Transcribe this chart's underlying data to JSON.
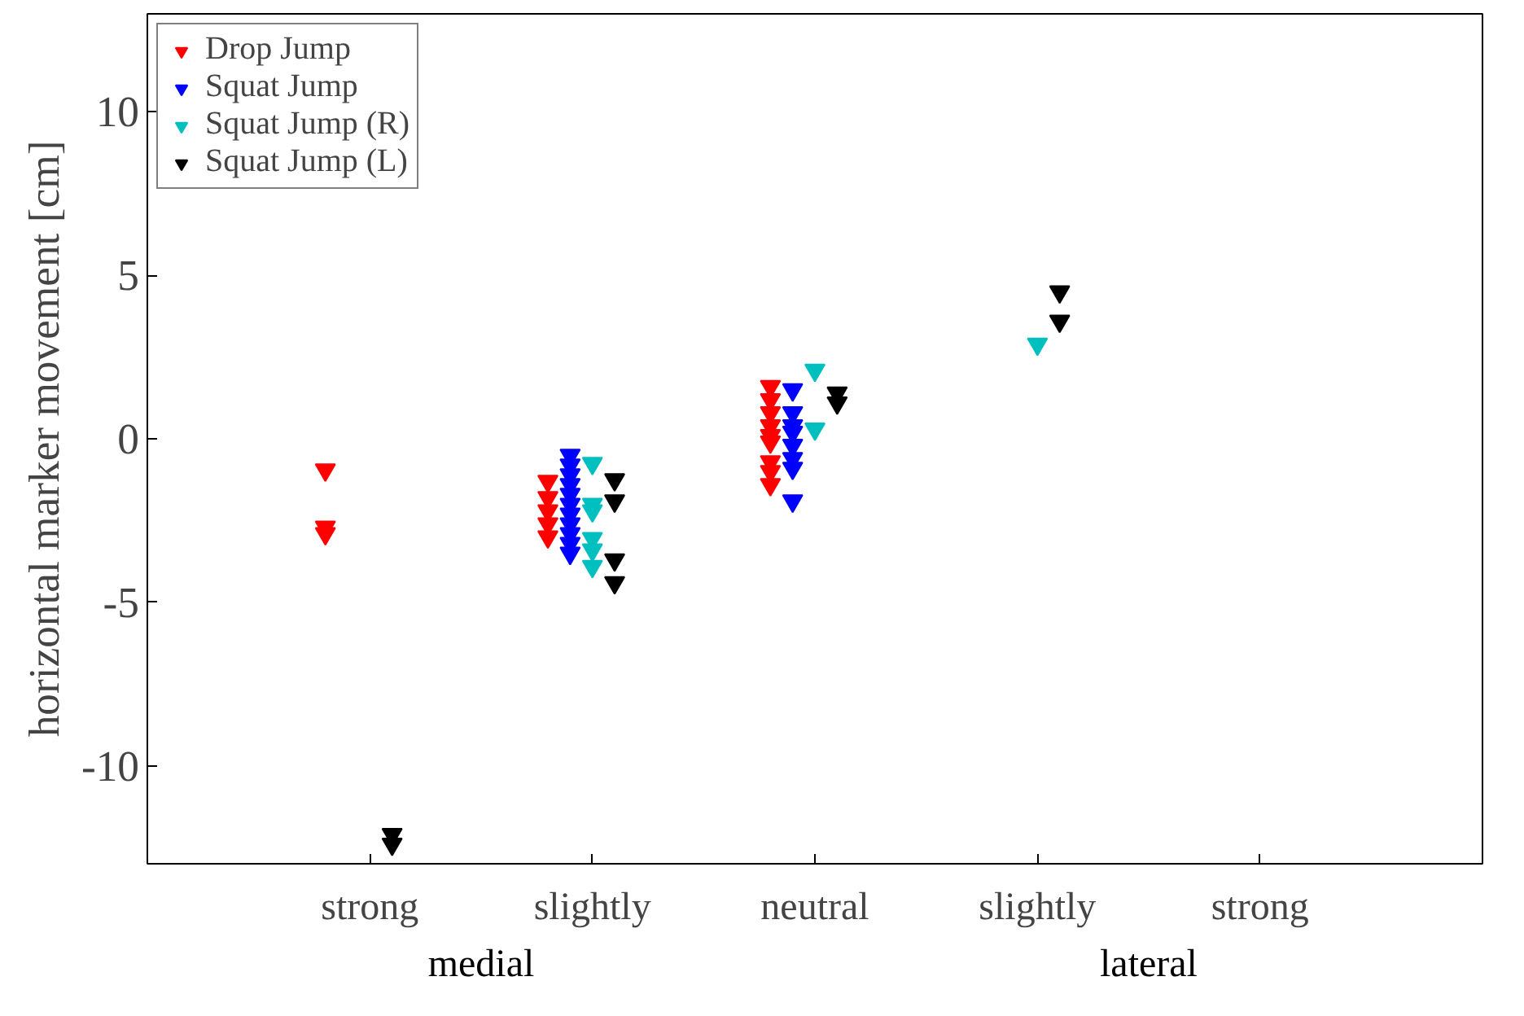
{
  "chart_data": {
    "type": "scatter",
    "ylabel": "horizontal marker movement [cm]",
    "categories": [
      "strong",
      "slightly",
      "neutral",
      "slightly",
      "strong"
    ],
    "ylim": [
      -13,
      13
    ],
    "yticks": [
      -10,
      -5,
      0,
      5,
      10
    ],
    "annotations": [
      "medial",
      "lateral"
    ],
    "marker": "triangle",
    "grid": false,
    "legend": "top left",
    "series": [
      {
        "name": "Drop Jump",
        "color": "#ff0000",
        "values": [
          -0.95,
          -1.3,
          1.6,
          null,
          null
        ]
      },
      {
        "color": "#ff0000",
        "values": [
          -2.7,
          -1.8,
          1.2,
          null,
          null
        ]
      },
      {
        "color": "#ff0000",
        "values": [
          -2.9,
          -2.2,
          0.8,
          null,
          null
        ]
      },
      {
        "color": "#ff0000",
        "values": [
          null,
          -2.6,
          0.4,
          null,
          null
        ]
      },
      {
        "color": "#ff0000",
        "values": [
          null,
          -3.0,
          0.1,
          null,
          null
        ]
      },
      {
        "color": "#ff0000",
        "values": [
          null,
          null,
          -0.1,
          null,
          null
        ]
      },
      {
        "color": "#ff0000",
        "values": [
          null,
          null,
          -0.7,
          null,
          null
        ]
      },
      {
        "color": "#ff0000",
        "values": [
          null,
          null,
          -1.0,
          null,
          null
        ]
      },
      {
        "color": "#ff0000",
        "values": [
          null,
          null,
          -1.4,
          null,
          null
        ]
      },
      {
        "name": "Squat Jump",
        "color": "#0000ff",
        "values": [
          null,
          -0.5,
          1.5,
          null,
          null
        ]
      },
      {
        "color": "#0000ff",
        "values": [
          null,
          -0.8,
          0.8,
          null,
          null
        ]
      },
      {
        "color": "#0000ff",
        "values": [
          null,
          -1.1,
          0.4,
          null,
          null
        ]
      },
      {
        "color": "#0000ff",
        "values": [
          null,
          -1.4,
          0.2,
          null,
          null
        ]
      },
      {
        "color": "#0000ff",
        "values": [
          null,
          -1.7,
          -0.2,
          null,
          null
        ]
      },
      {
        "color": "#0000ff",
        "values": [
          null,
          -2.0,
          -0.6,
          null,
          null
        ]
      },
      {
        "color": "#0000ff",
        "values": [
          null,
          -2.3,
          -0.9,
          null,
          null
        ]
      },
      {
        "color": "#0000ff",
        "values": [
          null,
          -2.6,
          -1.9,
          null,
          null
        ]
      },
      {
        "color": "#0000ff",
        "values": [
          null,
          -2.9,
          null,
          null,
          null
        ]
      },
      {
        "color": "#0000ff",
        "values": [
          null,
          -3.2,
          null,
          null,
          null
        ]
      },
      {
        "color": "#0000ff",
        "values": [
          null,
          -3.5,
          null,
          null,
          null
        ]
      },
      {
        "name": "Squat Jump (R)",
        "color": "#00bfbf",
        "values": [
          null,
          -0.75,
          2.1,
          2.9,
          null
        ]
      },
      {
        "color": "#00bfbf",
        "values": [
          null,
          -2.0,
          0.3,
          null,
          null
        ]
      },
      {
        "color": "#00bfbf",
        "values": [
          null,
          -2.2,
          null,
          null,
          null
        ]
      },
      {
        "color": "#00bfbf",
        "values": [
          null,
          -3.05,
          null,
          null,
          null
        ]
      },
      {
        "color": "#00bfbf",
        "values": [
          null,
          -3.4,
          null,
          null,
          null
        ]
      },
      {
        "color": "#00bfbf",
        "values": [
          null,
          -3.9,
          null,
          null,
          null
        ]
      },
      {
        "name": "Squat Jump (L)",
        "color": "#000000",
        "values": [
          -12.1,
          -1.25,
          1.4,
          4.5,
          null
        ]
      },
      {
        "color": "#000000",
        "values": [
          -12.4,
          -1.9,
          1.1,
          3.6,
          null
        ]
      },
      {
        "color": "#000000",
        "values": [
          null,
          -3.7,
          null,
          null,
          null
        ]
      },
      {
        "color": "#000000",
        "values": [
          null,
          -4.4,
          null,
          null,
          null
        ]
      }
    ]
  }
}
